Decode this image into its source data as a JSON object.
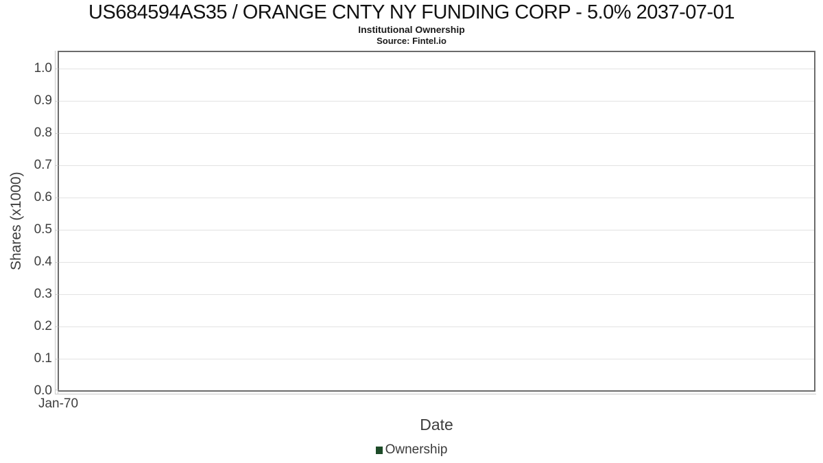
{
  "chart_data": {
    "type": "bar",
    "title": "US684594AS35 / ORANGE CNTY NY FUNDING CORP - 5.0% 2037-07-01",
    "subtitle": "Institutional Ownership",
    "source": "Source: Fintel.io",
    "xlabel": "Date",
    "ylabel": "Shares (x1000)",
    "x_ticks": [
      "Jan-70"
    ],
    "y_ticks": [
      "1.0",
      "0.9",
      "0.8",
      "0.7",
      "0.6",
      "0.5",
      "0.4",
      "0.3",
      "0.2",
      "0.1",
      "0.0"
    ],
    "ylim": [
      0.0,
      1.05
    ],
    "grid": "horizontal",
    "legend_position": "bottom-center",
    "legend": [
      {
        "label": "Ownership",
        "color": "#1d4b28"
      }
    ],
    "series": [
      {
        "name": "Ownership",
        "x": [],
        "values": []
      }
    ]
  }
}
